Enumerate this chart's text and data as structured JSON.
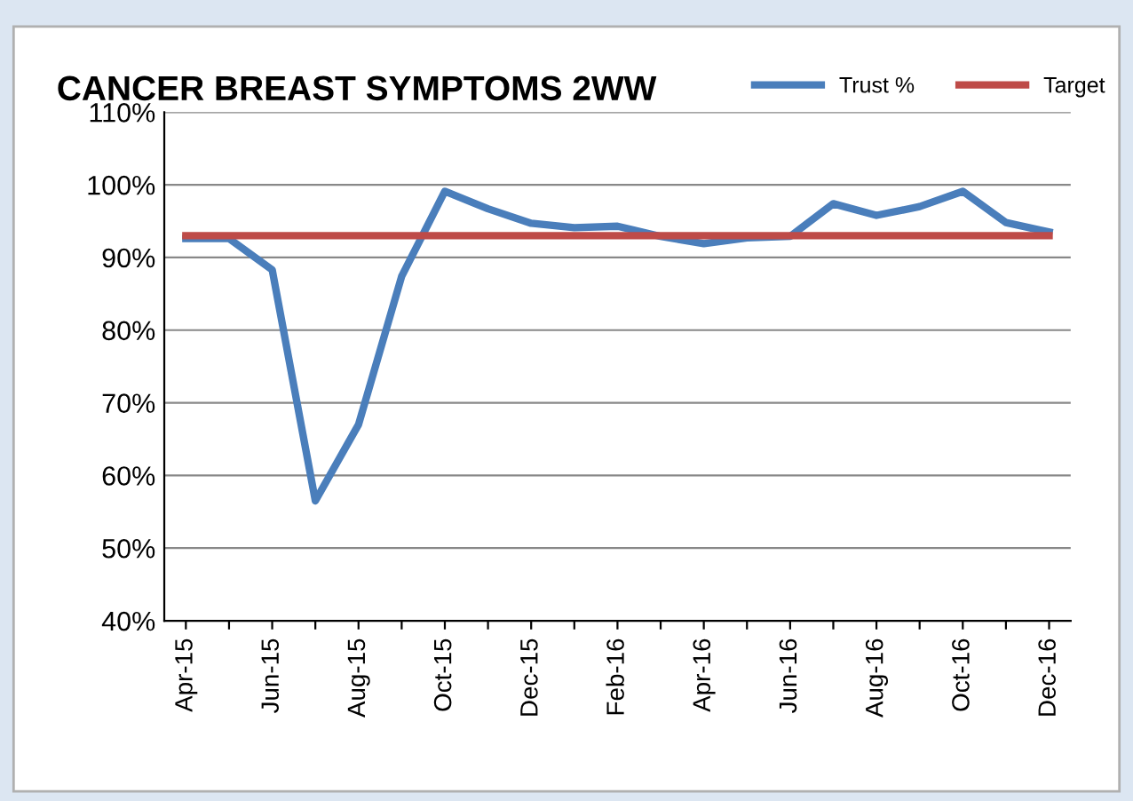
{
  "chart_data": {
    "type": "line",
    "title": "CANCER BREAST SYMPTOMS 2WW",
    "categories": [
      "Apr-15",
      null,
      "Jun-15",
      null,
      "Aug-15",
      null,
      "Oct-15",
      null,
      "Dec-15",
      null,
      "Feb-16",
      null,
      "Apr-16",
      null,
      "Jun-16",
      null,
      "Aug-16",
      null,
      "Oct-16",
      null,
      "Dec-16"
    ],
    "series": [
      {
        "name": "Trust %",
        "color": "#4a7ebb",
        "values": [
          92.6,
          92.6,
          88.3,
          56.5,
          67,
          87.4,
          99.1,
          96.7,
          94.7,
          94.1,
          94.3,
          92.9,
          91.9,
          92.7,
          92.9,
          97.4,
          95.8,
          97.0,
          99.1,
          94.8,
          93.5
        ]
      },
      {
        "name": "Target",
        "color": "#be4b48",
        "values": [
          93,
          93,
          93,
          93,
          93,
          93,
          93,
          93,
          93,
          93,
          93,
          93,
          93,
          93,
          93,
          93,
          93,
          93,
          93,
          93,
          93
        ]
      }
    ],
    "ylim": [
      40,
      110
    ],
    "yticks": [
      {
        "value": 40,
        "label": "40%"
      },
      {
        "value": 50,
        "label": "50%"
      },
      {
        "value": 60,
        "label": "60%"
      },
      {
        "value": 70,
        "label": "70%"
      },
      {
        "value": 80,
        "label": "80%"
      },
      {
        "value": 90,
        "label": "90%"
      },
      {
        "value": 100,
        "label": "100%"
      },
      {
        "value": 110,
        "label": "110%"
      }
    ],
    "grid": "y",
    "legend": "top right",
    "marker": "none",
    "line_style": "solid"
  }
}
